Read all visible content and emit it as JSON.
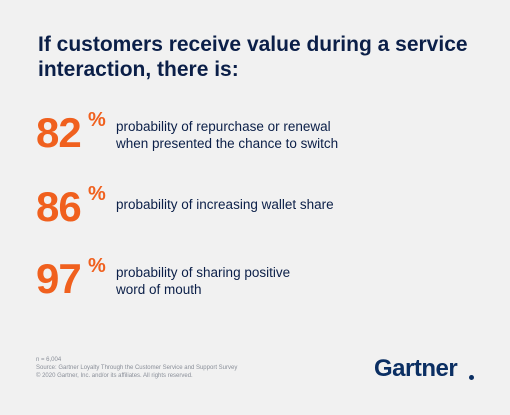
{
  "headline": "If customers receive value during a service interaction, there is:",
  "stats": [
    {
      "number": "82",
      "suffix": "%",
      "line1": "probability of repurchase or renewal",
      "line2": "when presented the chance to switch"
    },
    {
      "number": "86",
      "suffix": "%",
      "line1": "probability of increasing wallet share",
      "line2": ""
    },
    {
      "number": "97",
      "suffix": "%",
      "line1": "probability of sharing positive",
      "line2": "word of mouth"
    }
  ],
  "footnote": {
    "sample": "n = 6,004",
    "source": "Source: Gartner Loyalty Through the Customer Service and Support Survey",
    "copyright": "© 2020 Gartner, Inc. and/or its affiliates. All rights reserved."
  },
  "logo": {
    "text": "Gartner"
  },
  "colors": {
    "background": "#f1f1f1",
    "navy": "#0b1f48",
    "accent_orange": "#f0601e",
    "logo_blue": "#0b2f63"
  }
}
